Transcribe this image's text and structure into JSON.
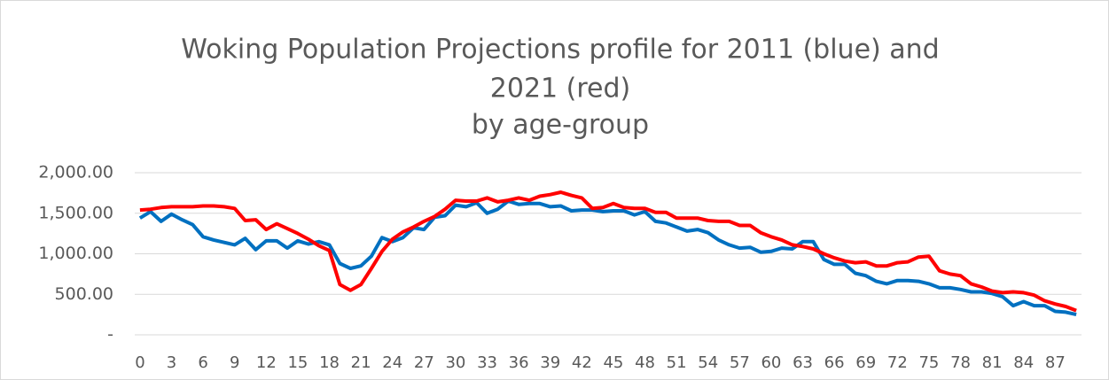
{
  "chart_data": {
    "type": "line",
    "title_lines": [
      "Woking Population Projections profile for 2011 (blue) and",
      "2021 (red)"
    ],
    "subtitle": "by age-group",
    "categories": [
      "0",
      null,
      null,
      "3",
      null,
      null,
      "6",
      null,
      null,
      "9",
      null,
      null,
      "12",
      null,
      null,
      "15",
      null,
      null,
      "18",
      null,
      null,
      "21",
      null,
      null,
      "24",
      null,
      null,
      "27",
      null,
      null,
      "30",
      null,
      null,
      "33",
      null,
      null,
      "36",
      null,
      null,
      "39",
      null,
      null,
      "42",
      null,
      null,
      "45",
      null,
      null,
      "48",
      null,
      null,
      "51",
      null,
      null,
      "54",
      null,
      null,
      "57",
      null,
      null,
      "60",
      null,
      null,
      "63",
      null,
      null,
      "66",
      null,
      null,
      "69",
      null,
      null,
      "72",
      null,
      null,
      "75",
      null,
      null,
      "78",
      null,
      null,
      "81",
      null,
      null,
      "84",
      null,
      null,
      "87",
      null,
      null
    ],
    "series": [
      {
        "name": "2011",
        "color": "#0070c0",
        "values": [
          1440,
          1520,
          1400,
          1490,
          1420,
          1360,
          1210,
          1170,
          1140,
          1110,
          1190,
          1050,
          1160,
          1160,
          1070,
          1160,
          1120,
          1150,
          1110,
          880,
          820,
          850,
          970,
          1200,
          1150,
          1200,
          1320,
          1300,
          1450,
          1470,
          1600,
          1580,
          1630,
          1500,
          1550,
          1650,
          1610,
          1620,
          1620,
          1580,
          1590,
          1530,
          1540,
          1540,
          1520,
          1530,
          1530,
          1480,
          1520,
          1400,
          1380,
          1330,
          1280,
          1300,
          1260,
          1170,
          1110,
          1070,
          1080,
          1020,
          1030,
          1070,
          1060,
          1150,
          1150,
          930,
          870,
          870,
          760,
          730,
          660,
          630,
          670,
          670,
          660,
          630,
          580,
          580,
          560,
          530,
          530,
          510,
          470,
          360,
          410,
          360,
          360,
          290,
          280,
          250
        ]
      },
      {
        "name": "2021",
        "color": "#ff0000",
        "values": [
          1540,
          1550,
          1570,
          1580,
          1580,
          1580,
          1590,
          1590,
          1580,
          1560,
          1410,
          1420,
          1300,
          1370,
          1310,
          1250,
          1180,
          1100,
          1040,
          620,
          550,
          620,
          820,
          1030,
          1180,
          1270,
          1330,
          1400,
          1460,
          1550,
          1660,
          1650,
          1650,
          1690,
          1640,
          1660,
          1690,
          1660,
          1710,
          1730,
          1760,
          1720,
          1690,
          1560,
          1570,
          1620,
          1570,
          1560,
          1560,
          1510,
          1510,
          1440,
          1440,
          1440,
          1410,
          1400,
          1400,
          1350,
          1350,
          1260,
          1210,
          1170,
          1110,
          1090,
          1060,
          1000,
          950,
          910,
          890,
          900,
          850,
          850,
          890,
          900,
          960,
          970,
          790,
          750,
          730,
          630,
          590,
          540,
          520,
          530,
          520,
          490,
          420,
          380,
          350,
          300
        ]
      }
    ],
    "ylim": [
      0,
      2000
    ],
    "yticks": [
      {
        "value": 0,
        "label": "-"
      },
      {
        "value": 500,
        "label": "500.00"
      },
      {
        "value": 1000,
        "label": "1,000.00"
      },
      {
        "value": 1500,
        "label": "1,500.00"
      },
      {
        "value": 2000,
        "label": "2,000.00"
      }
    ],
    "grid": true
  }
}
